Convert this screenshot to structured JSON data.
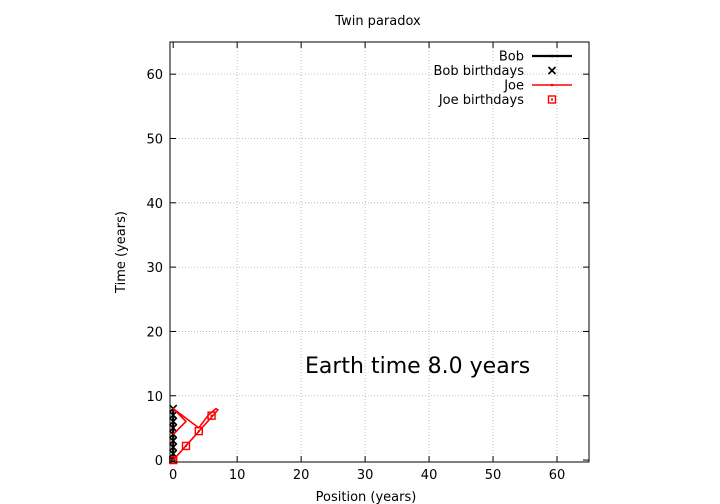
{
  "chart_data": {
    "type": "line",
    "title": "Twin paradox",
    "xlabel": "Position (years)",
    "ylabel": "Time (years)",
    "xlim": [
      -0.5,
      65
    ],
    "ylim": [
      -0.3,
      65
    ],
    "xticks": [
      0,
      10,
      20,
      30,
      40,
      50,
      60
    ],
    "yticks": [
      0,
      10,
      20,
      30,
      40,
      50,
      60
    ],
    "grid": true,
    "legend_position": "top-right",
    "annotation": "Earth time  8.0 years",
    "series": [
      {
        "name": "Bob",
        "kind": "line",
        "color": "#000000",
        "points": [
          [
            0,
            0
          ],
          [
            0,
            8
          ]
        ]
      },
      {
        "name": "Bob birthdays",
        "kind": "marker-x",
        "color": "#000000",
        "points": [
          [
            0,
            0
          ],
          [
            0,
            1
          ],
          [
            0,
            2
          ],
          [
            0,
            3
          ],
          [
            0,
            4
          ],
          [
            0,
            5
          ],
          [
            0,
            6
          ],
          [
            0,
            7
          ],
          [
            0,
            8
          ]
        ]
      },
      {
        "name": "Joe",
        "kind": "line",
        "color": "#ff0000",
        "points": [
          [
            0,
            0
          ],
          [
            3.6,
            4
          ],
          [
            7,
            7.8
          ],
          [
            6.7,
            8
          ],
          [
            5.5,
            7
          ],
          [
            4,
            5
          ],
          [
            0,
            8
          ],
          [
            2,
            6
          ],
          [
            0,
            4
          ]
        ]
      },
      {
        "name": "Joe birthdays",
        "kind": "marker-square",
        "color": "#ff0000",
        "points": [
          [
            0,
            0
          ],
          [
            2,
            2.2
          ],
          [
            4,
            4.5
          ],
          [
            6,
            6.9
          ]
        ]
      }
    ]
  }
}
